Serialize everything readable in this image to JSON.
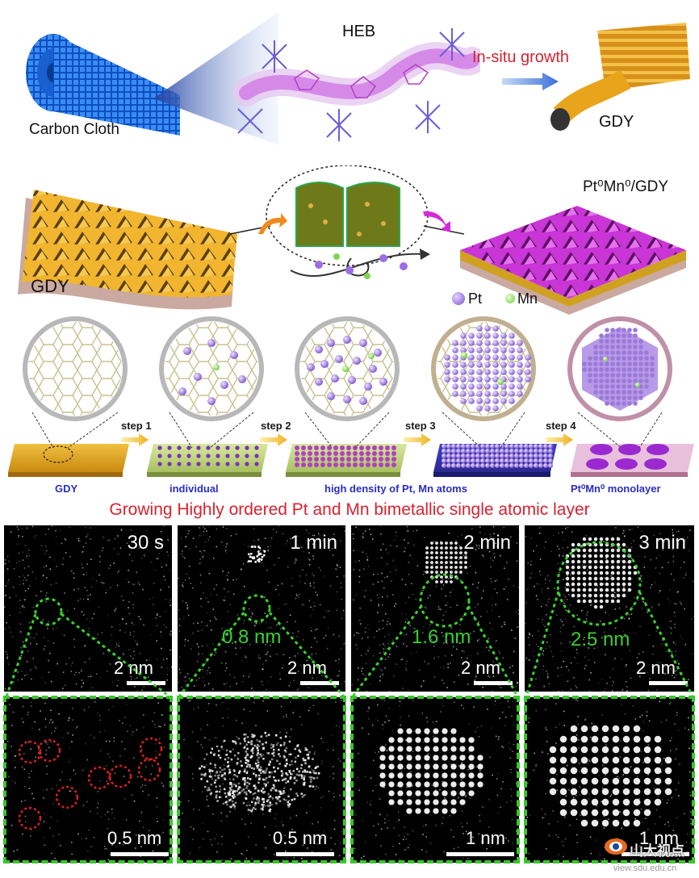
{
  "top": {
    "carbon_cloth_label": "Carbon Cloth",
    "heb_label": "HEB",
    "insitu_label": "In-situ growth",
    "gdy_top_label": "GDY"
  },
  "middle": {
    "gdy_label": "GDY",
    "ptmn_gdy_label": "Pt⁰Mn⁰/GDY",
    "legend_pt": "Pt",
    "legend_mn": "Mn"
  },
  "steps": {
    "step1": "step 1",
    "step2": "step 2",
    "step3": "step 3",
    "step4": "step 4",
    "cap_gdy": "GDY",
    "cap_individual": "individual",
    "cap_high_density": "high density of Pt, Mn atoms",
    "cap_monolayer": "Pt⁰Mn⁰ monolayer"
  },
  "headline": "Growing Highly ordered Pt and Mn bimetallic single atomic layer",
  "panels": [
    {
      "time": "30 s",
      "size": "",
      "scale_top": "2 nm",
      "scale_bottom": "0.5 nm"
    },
    {
      "time": "1 min",
      "size": "0.8 nm",
      "scale_top": "2 nm",
      "scale_bottom": "0.5 nm"
    },
    {
      "time": "2 min",
      "size": "1.6 nm",
      "scale_top": "2 nm",
      "scale_bottom": "1 nm"
    },
    {
      "time": "3 min",
      "size": "2.5 nm",
      "scale_top": "2 nm",
      "scale_bottom": "1 nm"
    }
  ],
  "watermark": {
    "text": "山大视点",
    "url": "view.sdu.edu.cn"
  },
  "colors": {
    "cloth_blue": "#1f6fe0",
    "gdy_gold": "#e8a51c",
    "ptmn_magenta": "#c935d6",
    "pt_purple": "#9b6ee8",
    "mn_green": "#7ed64e",
    "headline_red": "#d8222f",
    "caption_blue": "#2b2ec4",
    "stem_green": "#39c62a",
    "ring_red": "#e02020"
  }
}
